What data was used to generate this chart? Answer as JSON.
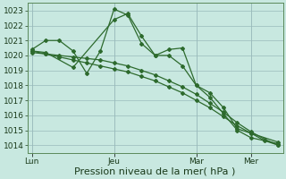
{
  "background_color": "#c8e8e0",
  "grid_color": "#99bbbb",
  "line_color": "#2d6a2d",
  "marker_style": "D",
  "marker_size": 2.0,
  "linewidth": 0.9,
  "ylim": [
    1013.5,
    1023.5
  ],
  "yticks": [
    1014,
    1015,
    1016,
    1017,
    1018,
    1019,
    1020,
    1021,
    1022,
    1023
  ],
  "xlabel": "Pression niveau de la mer( hPa )",
  "xlabel_fontsize": 8,
  "tick_fontsize": 6.5,
  "xtick_labels": [
    "Lun",
    "Jeu",
    "Mar",
    "Mer"
  ],
  "xtick_positions": [
    0,
    36,
    72,
    96
  ],
  "xlim": [
    -2,
    110
  ],
  "series": [
    {
      "x": [
        0,
        6,
        18,
        36,
        42,
        48,
        54,
        60,
        66,
        72,
        78,
        84,
        90,
        96,
        108
      ],
      "y": [
        1020.3,
        1020.2,
        1019.2,
        1022.4,
        1022.8,
        1021.3,
        1020.0,
        1020.0,
        1019.3,
        1018.0,
        1017.2,
        1016.1,
        1015.0,
        1014.5,
        1014.1
      ]
    },
    {
      "x": [
        0,
        6,
        12,
        18,
        24,
        30,
        36,
        42,
        48,
        54,
        60,
        66,
        72,
        78,
        84,
        90,
        96,
        108
      ],
      "y": [
        1020.4,
        1021.0,
        1021.0,
        1020.3,
        1018.8,
        1020.3,
        1023.1,
        1022.7,
        1020.8,
        1020.0,
        1020.4,
        1020.5,
        1018.0,
        1017.5,
        1016.5,
        1015.1,
        1014.8,
        1014.2
      ]
    },
    {
      "x": [
        0,
        6,
        12,
        18,
        24,
        30,
        36,
        42,
        48,
        54,
        60,
        66,
        72,
        78,
        84,
        90,
        96,
        102,
        108
      ],
      "y": [
        1020.2,
        1020.1,
        1020.0,
        1019.9,
        1019.8,
        1019.7,
        1019.5,
        1019.3,
        1019.0,
        1018.7,
        1018.3,
        1017.9,
        1017.4,
        1016.8,
        1016.2,
        1015.5,
        1014.9,
        1014.4,
        1014.0
      ]
    },
    {
      "x": [
        0,
        6,
        12,
        18,
        24,
        30,
        36,
        42,
        48,
        54,
        60,
        66,
        72,
        78,
        84,
        90,
        96,
        102,
        108
      ],
      "y": [
        1020.3,
        1020.1,
        1019.9,
        1019.7,
        1019.5,
        1019.3,
        1019.1,
        1018.9,
        1018.6,
        1018.3,
        1017.9,
        1017.5,
        1017.0,
        1016.5,
        1015.9,
        1015.3,
        1014.8,
        1014.3,
        1014.0
      ]
    }
  ]
}
